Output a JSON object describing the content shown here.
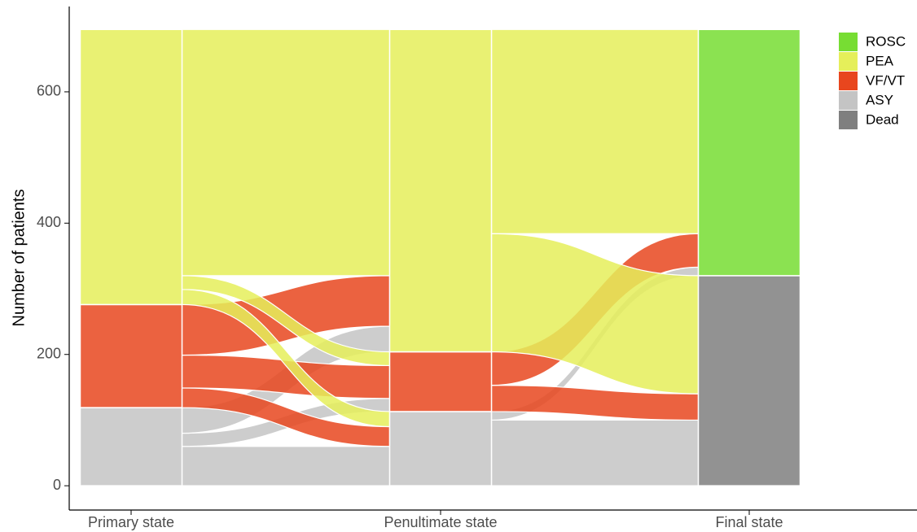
{
  "chart_data": {
    "type": "alluvial",
    "y_label": "Number of patients",
    "ylim": [
      -37,
      730
    ],
    "yticks": [
      0,
      200,
      400,
      600
    ],
    "legend": [
      {
        "name": "ROSC",
        "color": "#77dd33"
      },
      {
        "name": "PEA",
        "color": "#e5ef5a"
      },
      {
        "name": "VF/VT",
        "color": "#e8461e"
      },
      {
        "name": "ASY",
        "color": "#c4c4c4"
      },
      {
        "name": "Dead",
        "color": "#7f7f7f"
      }
    ],
    "stages": [
      {
        "name": "Primary state",
        "nodes": [
          {
            "category": "ASY",
            "value": 119
          },
          {
            "category": "VF/VT",
            "value": 157
          },
          {
            "category": "PEA",
            "value": 419
          }
        ]
      },
      {
        "name": "Penultimate state",
        "nodes": [
          {
            "category": "ASY",
            "value": 113
          },
          {
            "category": "VF/VT",
            "value": 91
          },
          {
            "category": "PEA",
            "value": 491
          }
        ]
      },
      {
        "name": "Final state",
        "nodes": [
          {
            "category": "Dead",
            "value": 320
          },
          {
            "category": "ROSC",
            "value": 375
          }
        ]
      }
    ],
    "flows": [
      {
        "stage": 0,
        "from": "ASY",
        "to": "ASY",
        "value": 60
      },
      {
        "stage": 0,
        "from": "ASY",
        "to": "VF/VT",
        "value": 20
      },
      {
        "stage": 0,
        "from": "ASY",
        "to": "PEA",
        "value": 39
      },
      {
        "stage": 0,
        "from": "VF/VT",
        "to": "ASY",
        "value": 30
      },
      {
        "stage": 0,
        "from": "VF/VT",
        "to": "VF/VT",
        "value": 50
      },
      {
        "stage": 0,
        "from": "VF/VT",
        "to": "PEA",
        "value": 77
      },
      {
        "stage": 0,
        "from": "PEA",
        "to": "ASY",
        "value": 23
      },
      {
        "stage": 0,
        "from": "PEA",
        "to": "VF/VT",
        "value": 21
      },
      {
        "stage": 0,
        "from": "PEA",
        "to": "PEA",
        "value": 375
      },
      {
        "stage": 1,
        "from": "ASY",
        "to": "Dead",
        "value": 100
      },
      {
        "stage": 1,
        "from": "ASY",
        "to": "ROSC",
        "value": 13
      },
      {
        "stage": 1,
        "from": "VF/VT",
        "to": "Dead",
        "value": 40
      },
      {
        "stage": 1,
        "from": "VF/VT",
        "to": "ROSC",
        "value": 51
      },
      {
        "stage": 1,
        "from": "PEA",
        "to": "Dead",
        "value": 180
      },
      {
        "stage": 1,
        "from": "PEA",
        "to": "ROSC",
        "value": 311
      }
    ]
  }
}
